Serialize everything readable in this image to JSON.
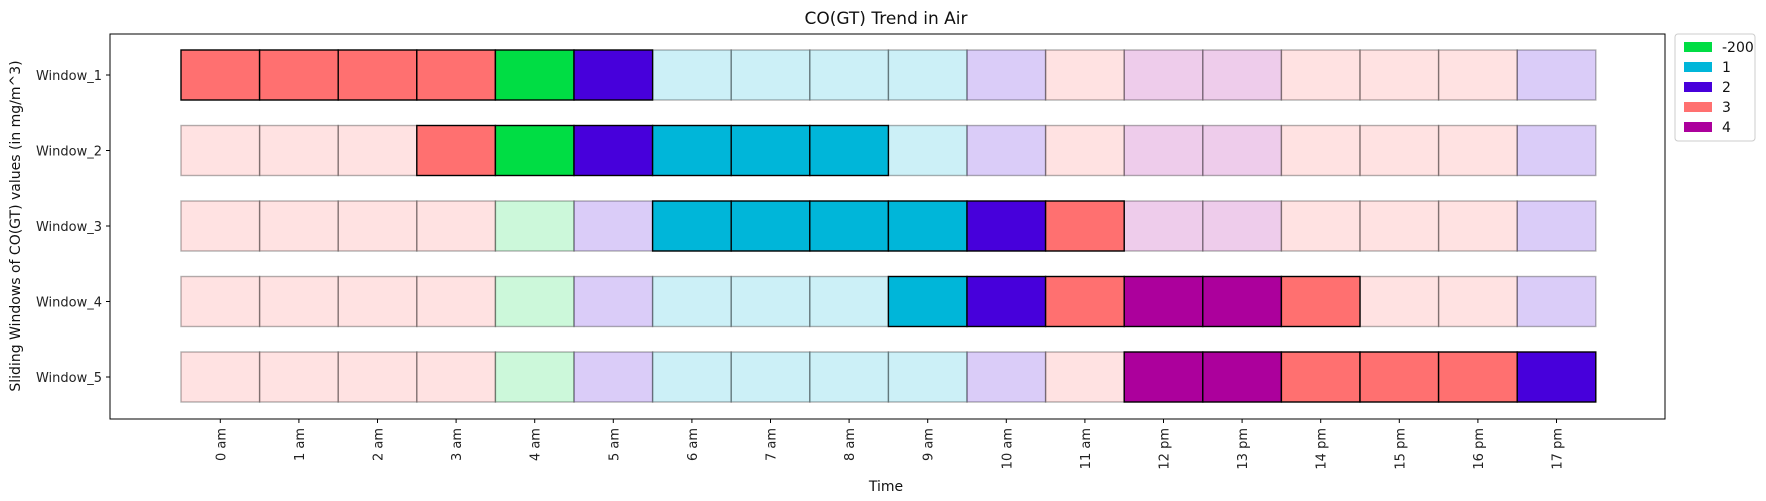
{
  "chart_data": {
    "type": "heatmap",
    "title": "CO(GT) Trend in Air",
    "xlabel": "Time",
    "ylabel": "Sliding Windows of CO(GT) values (in mg/m^3)",
    "x_categories": [
      "0 am",
      "1 am",
      "2 am",
      "3 am",
      "4 am",
      "5 am",
      "6 am",
      "7 am",
      "8 am",
      "9 am",
      "10 am",
      "11 am",
      "12 pm",
      "13 pm",
      "14 pm",
      "15 pm",
      "16 pm",
      "17 pm"
    ],
    "y_categories": [
      "Window_1",
      "Window_2",
      "Window_3",
      "Window_4",
      "Window_5"
    ],
    "legend": [
      {
        "label": "-200",
        "color": "#00dd44"
      },
      {
        "label": "1",
        "color": "#00b6d9"
      },
      {
        "label": "2",
        "color": "#4700db"
      },
      {
        "label": "3",
        "color": "#ff7070"
      },
      {
        "label": "4",
        "color": "#ac009c"
      }
    ],
    "legend_position": "outside top-right",
    "rows": [
      {
        "values": [
          "3",
          "3",
          "3",
          "3",
          "-200",
          "2",
          "1",
          "1",
          "1",
          "1",
          "2",
          "3",
          "4",
          "4",
          "3",
          "3",
          "3",
          "2"
        ],
        "highlighted": [
          1,
          1,
          1,
          1,
          1,
          1,
          0,
          0,
          0,
          0,
          0,
          0,
          0,
          0,
          0,
          0,
          0,
          0
        ]
      },
      {
        "values": [
          "3",
          "3",
          "3",
          "3",
          "-200",
          "2",
          "1",
          "1",
          "1",
          "1",
          "2",
          "3",
          "4",
          "4",
          "3",
          "3",
          "3",
          "2"
        ],
        "highlighted": [
          0,
          0,
          0,
          1,
          1,
          1,
          1,
          1,
          1,
          0,
          0,
          0,
          0,
          0,
          0,
          0,
          0,
          0
        ]
      },
      {
        "values": [
          "3",
          "3",
          "3",
          "3",
          "-200",
          "2",
          "1",
          "1",
          "1",
          "1",
          "2",
          "3",
          "4",
          "4",
          "3",
          "3",
          "3",
          "2"
        ],
        "highlighted": [
          0,
          0,
          0,
          0,
          0,
          0,
          1,
          1,
          1,
          1,
          1,
          1,
          0,
          0,
          0,
          0,
          0,
          0
        ]
      },
      {
        "values": [
          "3",
          "3",
          "3",
          "3",
          "-200",
          "2",
          "1",
          "1",
          "1",
          "1",
          "2",
          "3",
          "4",
          "4",
          "3",
          "3",
          "3",
          "2"
        ],
        "highlighted": [
          0,
          0,
          0,
          0,
          0,
          0,
          0,
          0,
          0,
          1,
          1,
          1,
          1,
          1,
          1,
          0,
          0,
          0
        ]
      },
      {
        "values": [
          "3",
          "3",
          "3",
          "3",
          "-200",
          "2",
          "1",
          "1",
          "1",
          "1",
          "2",
          "3",
          "4",
          "4",
          "3",
          "3",
          "3",
          "2"
        ],
        "highlighted": [
          0,
          0,
          0,
          0,
          0,
          0,
          0,
          0,
          0,
          0,
          0,
          0,
          1,
          1,
          1,
          1,
          1,
          1
        ]
      }
    ],
    "faded_opacity": 0.2,
    "grid": false
  }
}
